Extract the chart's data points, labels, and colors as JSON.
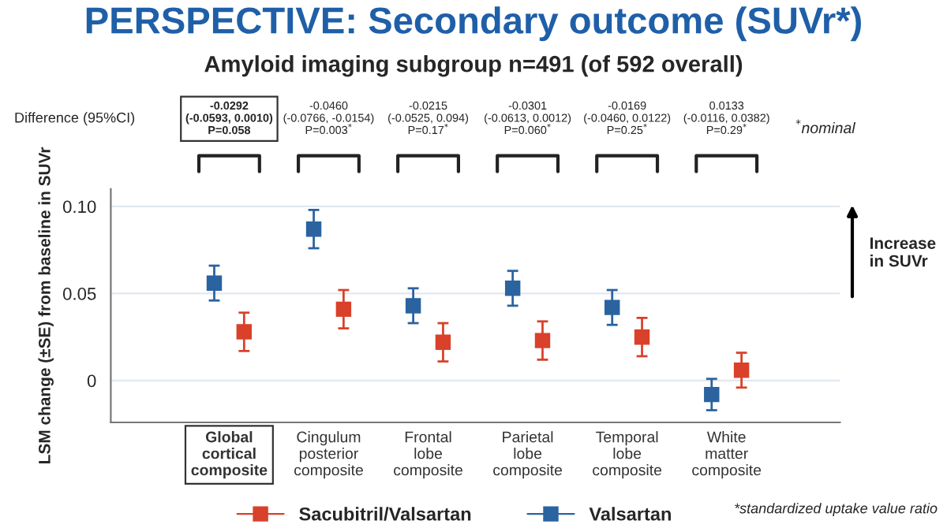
{
  "chart_data": {
    "type": "scatter",
    "title": "PERSPECTIVE: Secondary outcome (SUVr*)",
    "subtitle": "Amyloid imaging subgroup n=491 (of 592 overall)",
    "ylabel": "LSM change (±SE) from baseline in SUVr",
    "categories": [
      "Global\ncortical\ncomposite",
      "Cingulum\nposterior\ncomposite",
      "Frontal\nlobe\ncomposite",
      "Parietal\nlobe\ncomposite",
      "Temporal\nlobe\ncomposite",
      "White\nmatter\ncomposite"
    ],
    "series": [
      {
        "name": "Sacubitril/Valsartan",
        "color": "#d9412b",
        "values": [
          0.028,
          0.041,
          0.022,
          0.023,
          0.025,
          0.006
        ],
        "errors": [
          0.011,
          0.011,
          0.011,
          0.011,
          0.011,
          0.01
        ]
      },
      {
        "name": "Valsartan",
        "color": "#2a63a0",
        "values": [
          0.056,
          0.087,
          0.043,
          0.053,
          0.042,
          -0.008
        ],
        "errors": [
          0.01,
          0.011,
          0.01,
          0.01,
          0.01,
          0.009
        ]
      }
    ],
    "ylim": [
      -0.024,
      0.11
    ],
    "yticks": [
      {
        "value": 0,
        "label": "0"
      },
      {
        "value": 0.05,
        "label": "0.05"
      },
      {
        "value": 0.1,
        "label": "0.10"
      }
    ],
    "grid": "y",
    "marker": "square",
    "legend": "bottom",
    "annotations": [
      "Difference (95%CI)",
      "-0.0292\n(-0.0593, 0.0010)\nP=0.058",
      "-0.0460\n(-0.0766, -0.0154)\nP=0.003$^{*}$",
      "-0.0215\n(-0.0525, 0.094)\nP=0.17$^{*}$",
      "-0.0301\n(-0.0613, 0.0012)\nP=0.060$^{*}$",
      "-0.0169\n(-0.0460, 0.0122)\nP=0.25$^{*}$",
      "0.0133\n(-0.0116, 0.0382)\nP=0.29$^{*}$",
      "$^{*}$nominal",
      "Increase\nin SUVr",
      "*standardized uptake value ratio"
    ]
  }
}
